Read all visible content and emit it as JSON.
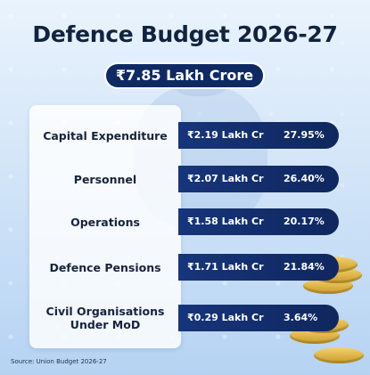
{
  "title": "Defence Budget 2026-27",
  "total": "₹7.85 Lakh Crore",
  "rows": [
    {
      "label": "Capital Expenditure",
      "amount": "₹2.19 Lakh Cr",
      "percent": "27.95%"
    },
    {
      "label": "Personnel",
      "amount": "₹2.07 Lakh Cr",
      "percent": "26.40%"
    },
    {
      "label": "Operations",
      "amount": "₹1.58 Lakh Cr",
      "percent": "20.17%"
    },
    {
      "label": "Defence Pensions",
      "amount": "₹1.71 Lakh Cr",
      "percent": "21.84%"
    },
    {
      "label": "Civil Organisations Under MoD",
      "amount": "₹0.29 Lakh Cr",
      "percent": "3.64%"
    }
  ],
  "source": "Source: Union Budget 2026-27",
  "colors": {
    "navy": "#0f2a63",
    "background": "#d3e5f8",
    "text": "#11233f"
  }
}
